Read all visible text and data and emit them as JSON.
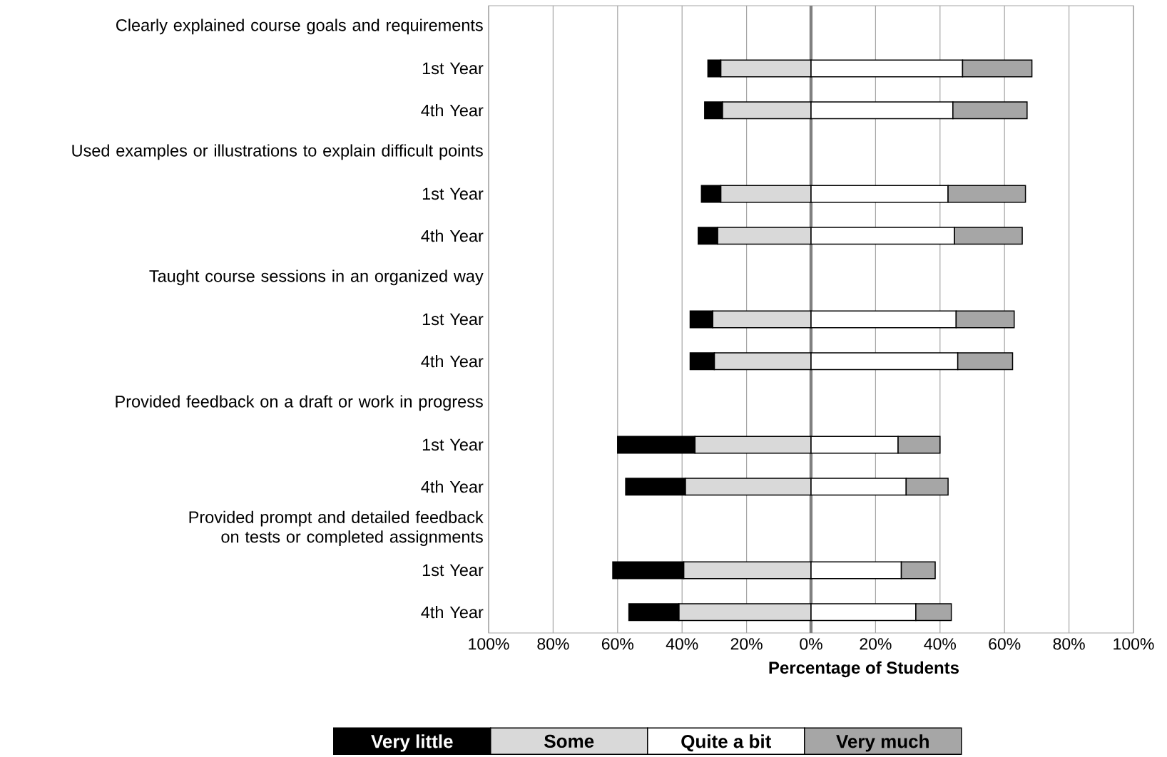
{
  "chart_data": {
    "type": "bar",
    "orientation": "horizontal",
    "stacked": true,
    "xlabel": "Percentage of Students",
    "categories": [
      "Clearly explained course goals and requirements",
      "1st Year",
      "4th Year",
      "Used examples or illustrations to explain difficult points",
      "1st Year",
      "4th Year",
      "Taught course sessions in an organized way",
      "1st Year",
      "4th Year",
      "Provided feedback on a draft or work in progress",
      "1st Year",
      "4th Year",
      "Provided prompt and detailed feedback on tests or completed assignments",
      "1st Year",
      "4th Year"
    ],
    "series": [
      {
        "name": "Some",
        "color": "#d9d9d9",
        "values": [
          null,
          -28,
          -27.5,
          null,
          -28,
          -29,
          null,
          -30.5,
          -30,
          null,
          -36,
          -39,
          null,
          -39.5,
          -41
        ]
      },
      {
        "name": "Very little",
        "color": "#000000",
        "values": [
          null,
          -4,
          -5.5,
          null,
          -6,
          -6,
          null,
          -7,
          -7.5,
          null,
          -24,
          -18.5,
          null,
          -22,
          -15.5
        ]
      },
      {
        "name": "Quite a bit",
        "color": "#ffffff",
        "values": [
          null,
          47,
          44,
          null,
          42.5,
          44.5,
          null,
          45,
          45.5,
          null,
          27,
          29.5,
          null,
          28,
          32.5
        ]
      },
      {
        "name": "Very much",
        "color": "#a6a6a6",
        "values": [
          null,
          21.5,
          23,
          null,
          24,
          21,
          null,
          18,
          17,
          null,
          13,
          13,
          null,
          10.5,
          11
        ]
      }
    ],
    "xlim": [
      -100,
      100
    ],
    "xticks": [
      {
        "value": -100,
        "label": "100%"
      },
      {
        "value": -80,
        "label": "80%"
      },
      {
        "value": -60,
        "label": "60%"
      },
      {
        "value": -40,
        "label": "40%"
      },
      {
        "value": -20,
        "label": "20%"
      },
      {
        "value": 0,
        "label": "0%"
      },
      {
        "value": 20,
        "label": "20%"
      },
      {
        "value": 40,
        "label": "40%"
      },
      {
        "value": 60,
        "label": "60%"
      },
      {
        "value": 80,
        "label": "80%"
      },
      {
        "value": 100,
        "label": "100%"
      }
    ],
    "grid": "x",
    "legend": "bottom",
    "ref_lines": [
      {
        "axis": "x",
        "value": 0,
        "color": "#808080"
      }
    ]
  }
}
